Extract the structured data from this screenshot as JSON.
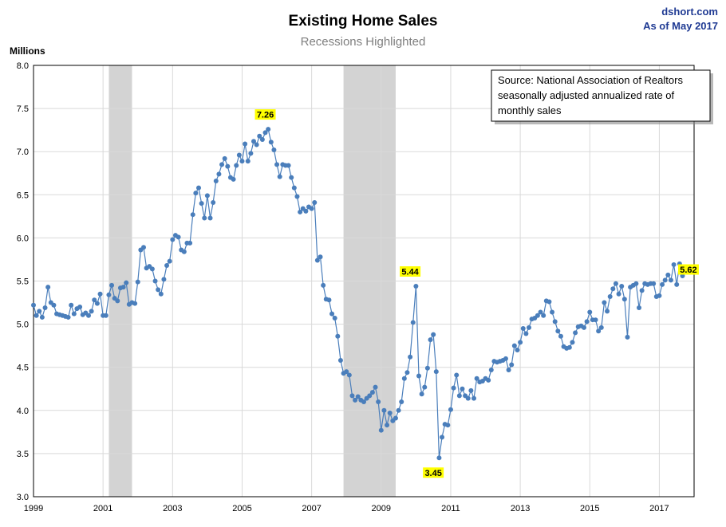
{
  "header": {
    "title": "Existing Home Sales",
    "subtitle": "Recessions Highlighted",
    "brand": "dshort.com",
    "asof": "As of May 2017"
  },
  "source_box": {
    "lines": [
      "Source: National Association of Realtors",
      "seasonally adjusted annualized rate of",
      "monthly  sales"
    ]
  },
  "colors": {
    "series": "#4a7ebb",
    "recession": "#d3d3d3",
    "grid": "#d9d9d9",
    "annotation_bg": "#ffff00"
  },
  "chart_data": {
    "type": "line",
    "title": "Existing Home Sales",
    "subtitle": "Recessions Highlighted",
    "ylabel": "Millions",
    "xlim": [
      1999,
      2018
    ],
    "ylim": [
      3.0,
      8.0
    ],
    "x_ticks": [
      "1999",
      "2001",
      "2003",
      "2005",
      "2007",
      "2009",
      "2011",
      "2013",
      "2015",
      "2017"
    ],
    "y_ticks": [
      "3.0",
      "3.5",
      "4.0",
      "4.5",
      "5.0",
      "5.5",
      "6.0",
      "6.5",
      "7.0",
      "7.5",
      "8.0"
    ],
    "grid": true,
    "recessions": [
      {
        "start": "2001-03",
        "end": "2001-11"
      },
      {
        "start": "2007-12",
        "end": "2009-06"
      }
    ],
    "annotations": [
      {
        "label": "7.26",
        "date": "2005-09",
        "value": 7.26,
        "position": "above"
      },
      {
        "label": "5.44",
        "date": "2009-11",
        "value": 5.44,
        "position": "above"
      },
      {
        "label": "3.45",
        "date": "2010-07",
        "value": 3.45,
        "position": "below"
      },
      {
        "label": "5.62",
        "date": "2017-05",
        "value": 5.62,
        "position": "right"
      }
    ],
    "series": [
      {
        "start": "1999-01",
        "frequency": "monthly",
        "values": [
          5.22,
          5.1,
          5.15,
          5.08,
          5.19,
          5.43,
          5.25,
          5.22,
          5.12,
          5.11,
          5.1,
          5.09,
          5.08,
          5.22,
          5.12,
          5.18,
          5.2,
          5.11,
          5.13,
          5.1,
          5.15,
          5.28,
          5.24,
          5.35,
          5.1,
          5.1,
          5.34,
          5.45,
          5.3,
          5.27,
          5.42,
          5.43,
          5.48,
          5.23,
          5.25,
          5.24,
          5.49,
          5.86,
          5.89,
          5.65,
          5.67,
          5.64,
          5.5,
          5.4,
          5.35,
          5.52,
          5.68,
          5.73,
          5.98,
          6.03,
          6.01,
          5.86,
          5.84,
          5.94,
          5.94,
          6.27,
          6.52,
          6.58,
          6.4,
          6.23,
          6.49,
          6.23,
          6.41,
          6.66,
          6.74,
          6.85,
          6.92,
          6.83,
          6.7,
          6.68,
          6.84,
          6.96,
          6.89,
          7.09,
          6.89,
          6.98,
          7.12,
          7.08,
          7.18,
          7.14,
          7.22,
          7.26,
          7.11,
          7.02,
          6.85,
          6.71,
          6.85,
          6.84,
          6.84,
          6.7,
          6.58,
          6.48,
          6.3,
          6.34,
          6.31,
          6.36,
          6.34,
          6.41,
          5.74,
          5.78,
          5.45,
          5.29,
          5.28,
          5.12,
          5.07,
          4.86,
          4.58,
          4.43,
          4.45,
          4.41,
          4.17,
          4.12,
          4.16,
          4.12,
          4.1,
          4.14,
          4.17,
          4.21,
          4.27,
          4.1,
          3.77,
          4.0,
          3.83,
          3.97,
          3.88,
          3.91,
          4.0,
          4.1,
          4.37,
          4.44,
          4.62,
          5.02,
          5.44,
          4.4,
          4.19,
          4.27,
          4.49,
          4.82,
          4.88,
          4.45,
          3.45,
          3.69,
          3.84,
          3.83,
          4.01,
          4.26,
          4.41,
          4.17,
          4.25,
          4.17,
          4.14,
          4.23,
          4.14,
          4.37,
          4.33,
          4.34,
          4.37,
          4.35,
          4.47,
          4.57,
          4.56,
          4.57,
          4.58,
          4.6,
          4.47,
          4.53,
          4.75,
          4.7,
          4.79,
          4.95,
          4.89,
          4.96,
          5.06,
          5.07,
          5.1,
          5.14,
          5.1,
          5.27,
          5.26,
          5.14,
          5.03,
          4.92,
          4.86,
          4.74,
          4.72,
          4.73,
          4.79,
          4.9,
          4.97,
          4.98,
          4.96,
          5.03,
          5.14,
          5.05,
          5.05,
          4.92,
          4.96,
          5.25,
          5.15,
          5.32,
          5.41,
          5.47,
          5.35,
          5.44,
          5.29,
          4.85,
          5.43,
          5.45,
          5.47,
          5.19,
          5.39,
          5.47,
          5.46,
          5.47,
          5.47,
          5.32,
          5.33,
          5.46,
          5.51,
          5.57,
          5.51,
          5.69,
          5.46,
          5.7,
          5.56,
          5.62
        ]
      }
    ]
  }
}
